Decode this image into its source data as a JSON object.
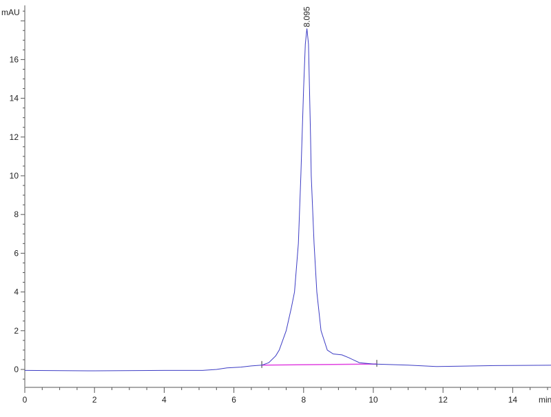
{
  "chart_data": {
    "type": "line",
    "title": "",
    "xlabel": "min",
    "ylabel": "mAU",
    "xlim": [
      0,
      15.2
    ],
    "ylim": [
      -0.9,
      18.8
    ],
    "x_ticks": [
      0,
      2,
      4,
      6,
      8,
      10,
      12,
      14
    ],
    "y_ticks": [
      0,
      2,
      4,
      6,
      8,
      10,
      12,
      14,
      16
    ],
    "grid": false,
    "colors": {
      "signal": "#3b3bc4",
      "baseline": "#e040e0",
      "axis": "#555555"
    },
    "series": [
      {
        "points": [
          [
            0,
            -0.05
          ],
          [
            2,
            -0.07
          ],
          [
            4,
            -0.05
          ],
          [
            5.1,
            -0.05
          ],
          [
            5.5,
            0
          ],
          [
            5.8,
            0.08
          ],
          [
            6.2,
            0.12
          ],
          [
            6.5,
            0.18
          ],
          [
            6.8,
            0.22
          ],
          [
            7.0,
            0.35
          ],
          [
            7.2,
            0.7
          ],
          [
            7.3,
            1.0
          ],
          [
            7.5,
            2.0
          ],
          [
            7.65,
            3.2
          ],
          [
            7.74,
            4.0
          ],
          [
            7.85,
            6.5
          ],
          [
            7.92,
            10
          ],
          [
            8.0,
            14.5
          ],
          [
            8.05,
            16.8
          ],
          [
            8.095,
            17.6
          ],
          [
            8.14,
            16.8
          ],
          [
            8.2,
            12
          ],
          [
            8.22,
            10
          ],
          [
            8.3,
            6.5
          ],
          [
            8.38,
            4.0
          ],
          [
            8.5,
            2.0
          ],
          [
            8.68,
            1.0
          ],
          [
            8.85,
            0.8
          ],
          [
            9.1,
            0.75
          ],
          [
            9.3,
            0.6
          ],
          [
            9.6,
            0.35
          ],
          [
            10,
            0.28
          ],
          [
            11,
            0.22
          ],
          [
            11.8,
            0.15
          ],
          [
            12.5,
            0.17
          ],
          [
            13.5,
            0.2
          ],
          [
            15.2,
            0.22
          ]
        ]
      }
    ],
    "integration_baseline": [
      [
        6.8,
        0.22
      ],
      [
        10.1,
        0.28
      ]
    ],
    "peaks": [
      {
        "x": 8.095,
        "y": 17.6,
        "label": "8.095"
      }
    ]
  }
}
